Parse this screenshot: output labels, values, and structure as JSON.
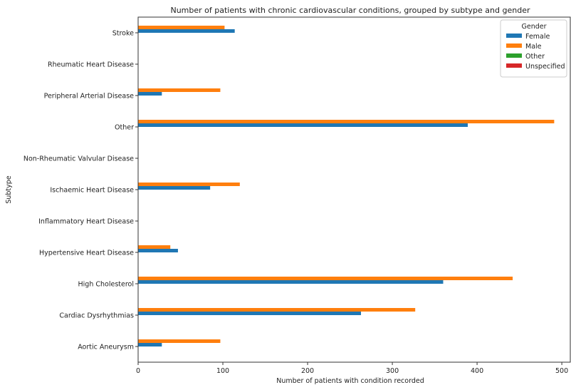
{
  "chart_data": {
    "type": "bar",
    "orientation": "horizontal",
    "title": "Number of patients with chronic cardiovascular conditions, grouped by subtype and gender",
    "xlabel": "Number of patients with condition recorded",
    "ylabel": "Subtype",
    "xlim": [
      0,
      510
    ],
    "xticks": [
      0,
      100,
      200,
      300,
      400,
      500
    ],
    "grid": false,
    "legend": {
      "title": "Gender",
      "placement": "top-right"
    },
    "categories": [
      "Aortic Aneurysm",
      "Cardiac Dysrhythmias",
      "High Cholesterol",
      "Hypertensive Heart Disease",
      "Inflammatory Heart Disease",
      "Ischaemic Heart Disease",
      "Non-Rheumatic Valvular Disease",
      "Other",
      "Peripheral Arterial Disease",
      "Rheumatic Heart Disease",
      "Stroke"
    ],
    "series": [
      {
        "name": "Female",
        "color": "#1f77b4",
        "values": [
          28,
          263,
          360,
          47,
          0,
          85,
          0,
          389,
          28,
          0,
          114
        ]
      },
      {
        "name": "Male",
        "color": "#ff7f0e",
        "values": [
          97,
          327,
          442,
          38,
          0,
          120,
          0,
          491,
          97,
          0,
          102
        ]
      },
      {
        "name": "Other",
        "color": "#2ca02c",
        "values": [
          0,
          0,
          0,
          0,
          0,
          0,
          0,
          0,
          0,
          0,
          0
        ]
      },
      {
        "name": "Unspecified",
        "color": "#d62728",
        "values": [
          0,
          0,
          0,
          0,
          0,
          0,
          0,
          0,
          0,
          0,
          0
        ]
      }
    ]
  }
}
